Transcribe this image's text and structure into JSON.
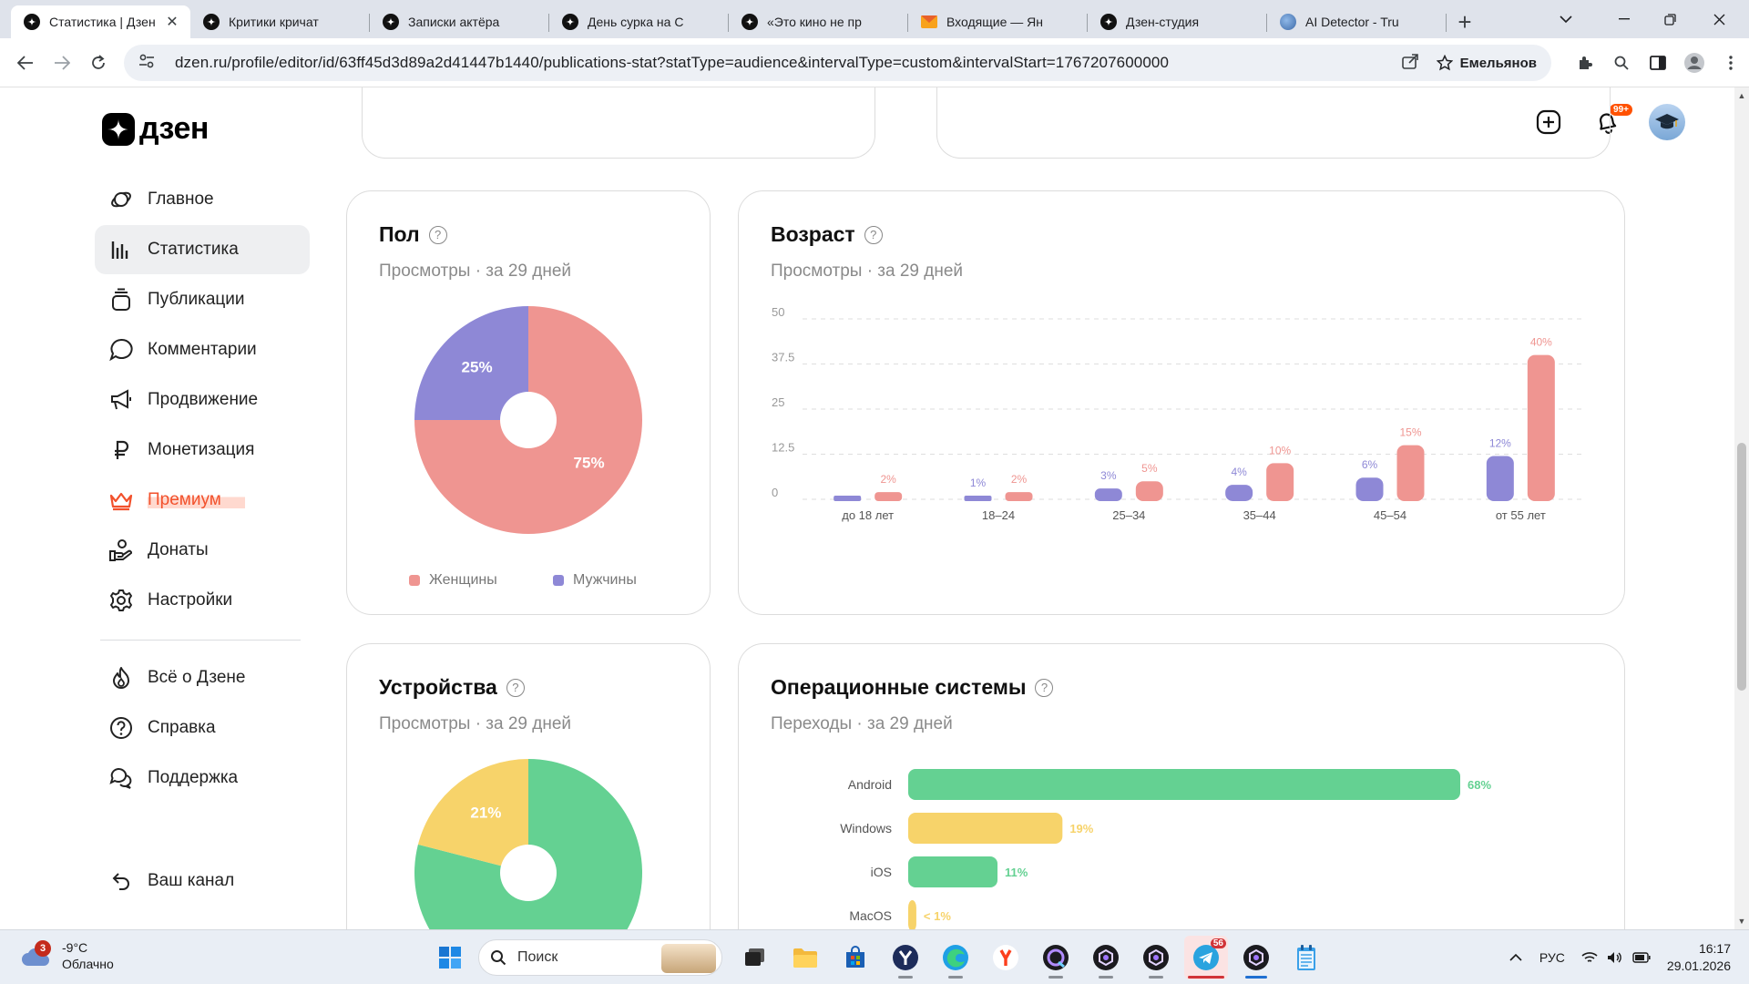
{
  "browser": {
    "tabs": [
      {
        "title": "Статистика | Дзен",
        "favicon": "dzen-icon",
        "active": true
      },
      {
        "title": "Критики кричат",
        "favicon": "dzen-icon"
      },
      {
        "title": "Записки актёра",
        "favicon": "dzen-icon"
      },
      {
        "title": "День сурка на С",
        "favicon": "dzen-icon"
      },
      {
        "title": "«Это кино не пр",
        "favicon": "dzen-icon"
      },
      {
        "title": "Входящие — Ян",
        "favicon": "yandex-mail-icon"
      },
      {
        "title": "Дзен-студия",
        "favicon": "dzen-icon"
      },
      {
        "title": "AI Detector - Tru",
        "favicon": "globe-icon"
      }
    ],
    "url": "dzen.ru/profile/editor/id/63ff45d3d89a2d41447b1440/publications-stat?statType=audience&intervalType=custom&intervalStart=1767207600000",
    "profile_name": "Емельянов"
  },
  "header": {
    "logo_text": "дзен",
    "notifications_badge": "99+"
  },
  "sidebar": {
    "items": [
      {
        "label": "Главное",
        "icon": "planet-icon"
      },
      {
        "label": "Статистика",
        "icon": "bar-chart-icon",
        "active": true
      },
      {
        "label": "Публикации",
        "icon": "stack-icon"
      },
      {
        "label": "Комментарии",
        "icon": "comment-icon"
      },
      {
        "label": "Продвижение",
        "icon": "megaphone-icon"
      },
      {
        "label": "Монетизация",
        "icon": "ruble-icon"
      },
      {
        "label": "Премиум",
        "icon": "crown-icon"
      },
      {
        "label": "Донаты",
        "icon": "donate-icon"
      },
      {
        "label": "Настройки",
        "icon": "gear-icon"
      }
    ],
    "secondary": [
      {
        "label": "Всё о Дзене",
        "icon": "flame-icon"
      },
      {
        "label": "Справка",
        "icon": "help-icon"
      },
      {
        "label": "Поддержка",
        "icon": "support-icon"
      }
    ],
    "channel_label": "Ваш канал"
  },
  "cards": {
    "gender": {
      "title": "Пол",
      "subtitle": "Просмотры · за 29 дней",
      "chart_data": {
        "type": "pie",
        "slices": [
          {
            "name": "Женщины",
            "value": 75,
            "label": "75%",
            "color": "#ef9591"
          },
          {
            "name": "Мужчины",
            "value": 25,
            "label": "25%",
            "color": "#8e88d6"
          }
        ],
        "legend": "bottom"
      }
    },
    "age": {
      "title": "Возраст",
      "subtitle": "Просмотры · за 29 дней",
      "chart_data": {
        "type": "bar",
        "categories": [
          "до 18 лет",
          "18–24",
          "25–34",
          "35–44",
          "45–54",
          "от 55 лет"
        ],
        "series": [
          {
            "values": [
              1,
              1,
              3,
              4,
              6,
              12
            ],
            "labels": [
              "",
              "1%",
              "3%",
              "4%",
              "6%",
              "12%"
            ],
            "color": "#8e88d6"
          },
          {
            "values": [
              2,
              2,
              5,
              10,
              15,
              40
            ],
            "labels": [
              "2%",
              "2%",
              "5%",
              "10%",
              "15%",
              "40%"
            ],
            "color": "#ef9591"
          }
        ],
        "yticks": [
          "0",
          "12.5",
          "25",
          "37.5",
          "50"
        ],
        "ylim": [
          0,
          50
        ],
        "grid": true
      }
    },
    "devices": {
      "title": "Устройства",
      "subtitle": "Просмотры · за 29 дней",
      "chart_data": {
        "type": "pie",
        "slices": [
          {
            "value": 79,
            "label": "",
            "color": "#64d192"
          },
          {
            "value": 21,
            "label": "21%",
            "color": "#f7d36a"
          }
        ]
      }
    },
    "os": {
      "title": "Операционные системы",
      "subtitle": "Переходы · за 29 дней",
      "chart_data": {
        "type": "bar",
        "orientation": "horizontal",
        "categories": [
          "Android",
          "Windows",
          "iOS",
          "MacOS"
        ],
        "values": [
          68,
          19,
          11,
          1
        ],
        "labels": [
          "68%",
          "19%",
          "11%",
          "< 1%"
        ],
        "colors": [
          "#64d192",
          "#f7d36a",
          "#64d192",
          "#f7d36a"
        ],
        "xlim": [
          0,
          68
        ]
      }
    }
  },
  "taskbar": {
    "weather_temp": "-9°C",
    "weather_text": "Облачно",
    "weather_badge": "3",
    "search_placeholder": "Поиск",
    "telegram_badge": "56",
    "language": "РУС",
    "time": "16:17",
    "date": "29.01.2026"
  }
}
